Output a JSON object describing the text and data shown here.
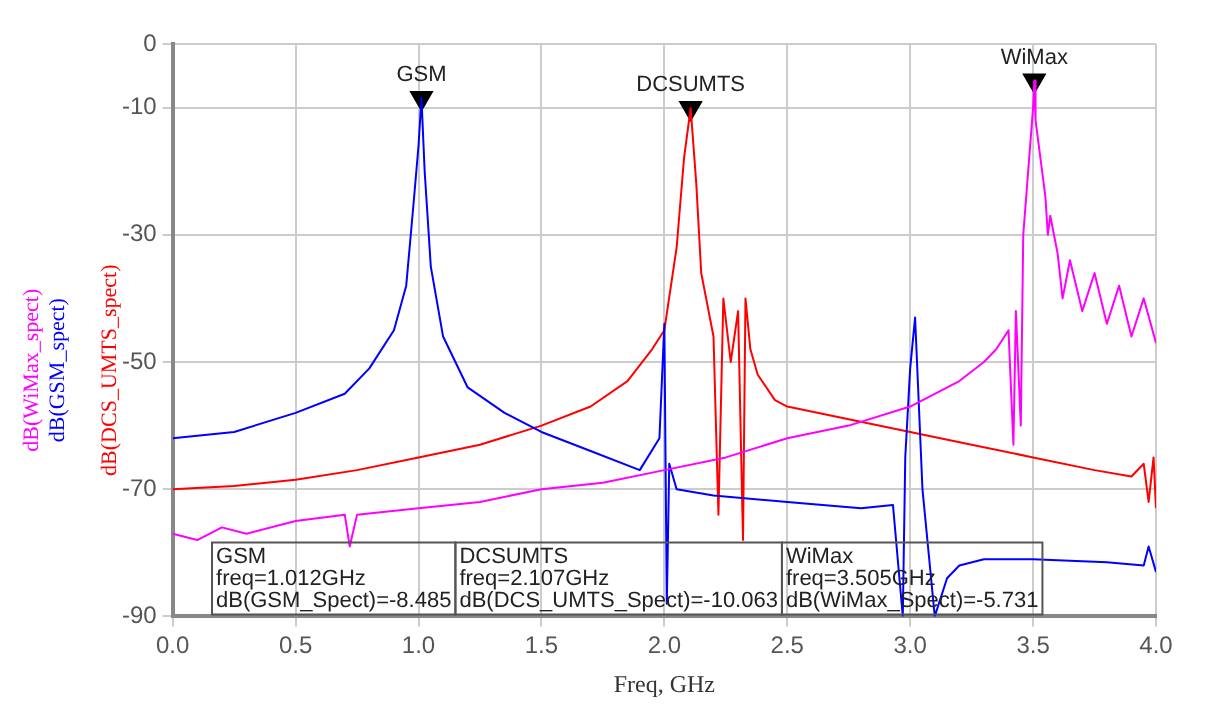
{
  "chart_data": {
    "type": "line",
    "xlabel": "Freq, GHz",
    "xlim": [
      0,
      4
    ],
    "xticks": [
      {
        "value": 0,
        "label": "0.0"
      },
      {
        "value": 0.5,
        "label": "0.5"
      },
      {
        "value": 1,
        "label": "1.0"
      },
      {
        "value": 1.5,
        "label": "1.5"
      },
      {
        "value": 2,
        "label": "2.0"
      },
      {
        "value": 2.5,
        "label": "2.5"
      },
      {
        "value": 3,
        "label": "3.0"
      },
      {
        "value": 3.5,
        "label": "3.5"
      },
      {
        "value": 4,
        "label": "4.0"
      }
    ],
    "ylim": [
      -90,
      0
    ],
    "yticks": [
      -90,
      -70,
      -50,
      -30,
      -10,
      0
    ],
    "grid": true,
    "legend": "left",
    "marker": "none",
    "line_style": "solid",
    "series": [
      {
        "name": "dB(WiMax_spect)",
        "color": "#ff00ff",
        "x": [
          0,
          0.1,
          0.2,
          0.3,
          0.5,
          0.7,
          0.72,
          0.75,
          1.0,
          1.25,
          1.5,
          1.75,
          2.0,
          2.25,
          2.5,
          2.75,
          3.0,
          3.1,
          3.2,
          3.3,
          3.35,
          3.4,
          3.42,
          3.43,
          3.45,
          3.46,
          3.48,
          3.5,
          3.505,
          3.51,
          3.53,
          3.55,
          3.56,
          3.57,
          3.6,
          3.62,
          3.65,
          3.7,
          3.75,
          3.8,
          3.85,
          3.9,
          3.95,
          4.0
        ],
        "values": [
          -77,
          -78,
          -76,
          -77,
          -75,
          -74,
          -79,
          -74,
          -73,
          -72,
          -70,
          -69,
          -67,
          -65,
          -62,
          -60,
          -57,
          -55,
          -53,
          -50,
          -48,
          -45,
          -63,
          -42,
          -60,
          -30,
          -20,
          -10,
          -5.731,
          -12,
          -18,
          -24,
          -30,
          -27,
          -33,
          -40,
          -34,
          -42,
          -36,
          -44,
          -38,
          -46,
          -40,
          -47
        ]
      },
      {
        "name": "dB(GSM_spect)",
        "color": "#0000ff",
        "x": [
          0,
          0.25,
          0.5,
          0.7,
          0.8,
          0.9,
          0.95,
          0.98,
          1.0,
          1.012,
          1.025,
          1.05,
          1.1,
          1.2,
          1.35,
          1.5,
          1.7,
          1.9,
          1.98,
          2.0,
          2.01,
          2.02,
          2.05,
          2.2,
          2.5,
          2.8,
          2.93,
          2.97,
          2.98,
          3.0,
          3.02,
          3.05,
          3.1,
          3.15,
          3.2,
          3.3,
          3.5,
          3.8,
          3.95,
          3.97,
          4.0
        ],
        "values": [
          -62,
          -61,
          -58,
          -55,
          -51,
          -45,
          -38,
          -25,
          -16,
          -8.485,
          -20,
          -35,
          -46,
          -54,
          -58,
          -61,
          -64,
          -67,
          -62,
          -44,
          -88,
          -66,
          -70,
          -71,
          -72,
          -73,
          -72.5,
          -90,
          -65,
          -51,
          -43,
          -70,
          -90,
          -84,
          -82,
          -81,
          -81,
          -81.5,
          -82,
          -79,
          -83
        ]
      },
      {
        "type": "scatter",
        "marker": "triangle",
        "color": "#000000",
        "x": [
          1.012,
          2.107,
          3.505
        ],
        "values": [
          -8.485,
          -10.063,
          -5.731
        ]
      },
      {
        "name": "dB(DCS_UMTS_spect)",
        "color": "#ff0000",
        "x": [
          0,
          0.25,
          0.5,
          0.75,
          1.0,
          1.25,
          1.5,
          1.7,
          1.85,
          1.95,
          2.0,
          2.05,
          2.08,
          2.107,
          2.13,
          2.15,
          2.18,
          2.2,
          2.22,
          2.24,
          2.27,
          2.3,
          2.32,
          2.33,
          2.35,
          2.38,
          2.45,
          2.5,
          2.75,
          3.0,
          3.25,
          3.5,
          3.75,
          3.9,
          3.95,
          3.97,
          3.99,
          4.0
        ],
        "values": [
          -70,
          -69.5,
          -68.5,
          -67,
          -65,
          -63,
          -60,
          -57,
          -53,
          -48,
          -45,
          -32,
          -18,
          -10.063,
          -22,
          -36,
          -42,
          -46,
          -74,
          -40,
          -50,
          -42,
          -78,
          -40,
          -48,
          -52,
          -56,
          -57,
          -59,
          -61,
          -63,
          -65,
          -67,
          -68,
          -66,
          -72,
          -65,
          -73
        ]
      }
    ],
    "annotations": [
      {
        "text": "GSM",
        "x": 1.012,
        "y": -8.485
      },
      {
        "text": "DCSUMTS",
        "x": 2.107,
        "y": -10.063
      },
      {
        "text": "WiMax",
        "x": 3.505,
        "y": -5.731
      },
      "GSM\nfreq=1.012GHz\ndB(GSM_Spect)=-8.485",
      "DCSUMTS\nfreq=2.107GHz\ndB(DCS_UMTS_Spect)=-10.063",
      "WiMax\nfreq=3.505GHz\ndB(WiMax_Spect)=-5.731"
    ]
  }
}
